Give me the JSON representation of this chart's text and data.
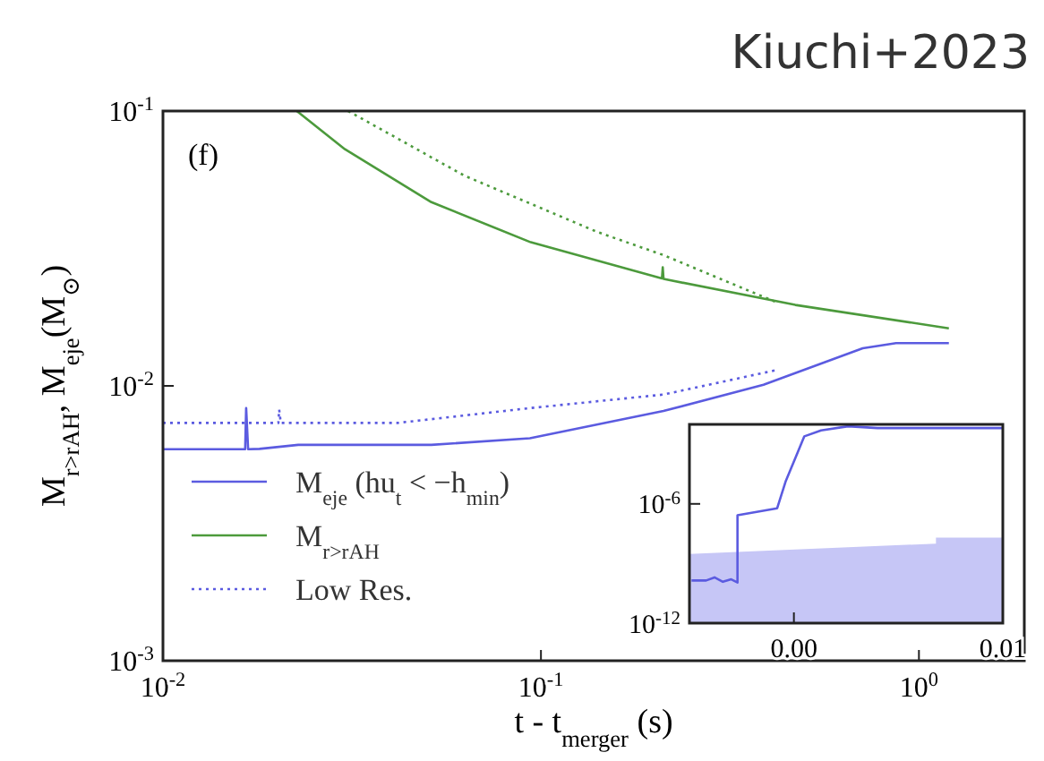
{
  "chart_data": [
    {
      "type": "line",
      "title": "Kiuchi+2023",
      "xlabel": "t - t$_{merger}$ (s)",
      "ylabel": "M$_{r>rAH}$,  M$_{eje}$(M$_{⊙}$)",
      "annotations": [
        "(f)"
      ],
      "log": "xy",
      "xlim": [
        0.01,
        1.9
      ],
      "ylim": [
        0.001,
        0.1
      ],
      "xticks": [
        {
          "value": 0.01,
          "label": "10$^{-2}$"
        },
        {
          "value": 0.1,
          "label": "10$^{-1}$"
        },
        {
          "value": 1,
          "label": "10$^{0}$"
        }
      ],
      "yticks": [
        {
          "value": 0.001,
          "label": "10$^{-3}$"
        },
        {
          "value": 0.01,
          "label": "10$^{-2}$"
        },
        {
          "value": 0.1,
          "label": "10$^{-1}$"
        }
      ],
      "grid": false,
      "legend": "bottom left",
      "marker": "none",
      "series": [
        {
          "name": "M$_{eje}$ (hu$_{t}$ < −h$_{min}$)",
          "color": "#5b5be0",
          "line_style": "solid",
          "x": [
            0.01,
            0.0165,
            0.0166,
            0.0168,
            0.018,
            0.0228,
            0.0513,
            0.0935,
            0.211,
            0.388,
            0.71,
            0.87,
            1.2
          ],
          "values": [
            0.00588,
            0.00588,
            0.0083,
            0.00588,
            0.0059,
            0.0061,
            0.0061,
            0.00645,
            0.0081,
            0.0101,
            0.0137,
            0.0143,
            0.0143
          ]
        },
        {
          "name": "M$_{r>rAH}$",
          "color": "#4c9a3c",
          "line_style": "solid",
          "x": [
            0.0226,
            0.0303,
            0.0513,
            0.094,
            0.209,
            0.21,
            0.211,
            0.471,
            1.2
          ],
          "values": [
            0.1,
            0.0726,
            0.0466,
            0.0333,
            0.0246,
            0.027,
            0.0245,
            0.0197,
            0.0162
          ]
        },
        {
          "name": null,
          "color": "#4c9a3c",
          "line_style": "dotted",
          "x": [
            0.0309,
            0.0627,
            0.141,
            0.211,
            0.418
          ],
          "values": [
            0.1,
            0.0582,
            0.0363,
            0.0299,
            0.0202
          ]
        },
        {
          "name": "Low Res.",
          "color": "#5b5be0",
          "line_style": "dotted",
          "x": [
            0.01,
            0.0202,
            0.0203,
            0.0205,
            0.0417,
            0.0935,
            0.211,
            0.418
          ],
          "values": [
            0.00733,
            0.00733,
            0.0082,
            0.00733,
            0.00733,
            0.0083,
            0.0093,
            0.0114
          ]
        }
      ]
    },
    {
      "type": "line",
      "log": "y",
      "xlim": [
        -0.005,
        0.01
      ],
      "ylim": [
        1e-12,
        0.01
      ],
      "xticks": [
        {
          "value": 0,
          "label": "0.00"
        },
        {
          "value": 0.01,
          "label": "0.01"
        }
      ],
      "yticks": [
        {
          "value": 1e-12,
          "label": "10$^{-12}$"
        },
        {
          "value": 1e-06,
          "label": "10$^{-6}$"
        }
      ],
      "grid": false,
      "marker": "none",
      "series": [
        {
          "type": "area",
          "color": "#c6c6f6",
          "x": [
            -0.005,
            0.0068,
            0.0068,
            0.01
          ],
          "values": [
            3e-09,
            1e-08,
            2e-08,
            2e-08
          ]
        },
        {
          "color": "#5b5be0",
          "line_style": "solid",
          "x": [
            -0.0049,
            -0.0042,
            -0.0038,
            -0.0034,
            -0.003,
            -0.0027,
            -0.0027,
            -0.0008,
            -0.0004,
            0.0005,
            0.0013,
            0.0026,
            0.004,
            0.01
          ],
          "values": [
            1.4e-10,
            1.4e-10,
            2e-10,
            1.2e-10,
            1.6e-10,
            1.1e-10,
            2.7e-07,
            6e-07,
            1.3e-05,
            0.0025,
            0.005,
            0.008,
            0.0065,
            0.0065
          ]
        }
      ]
    }
  ]
}
